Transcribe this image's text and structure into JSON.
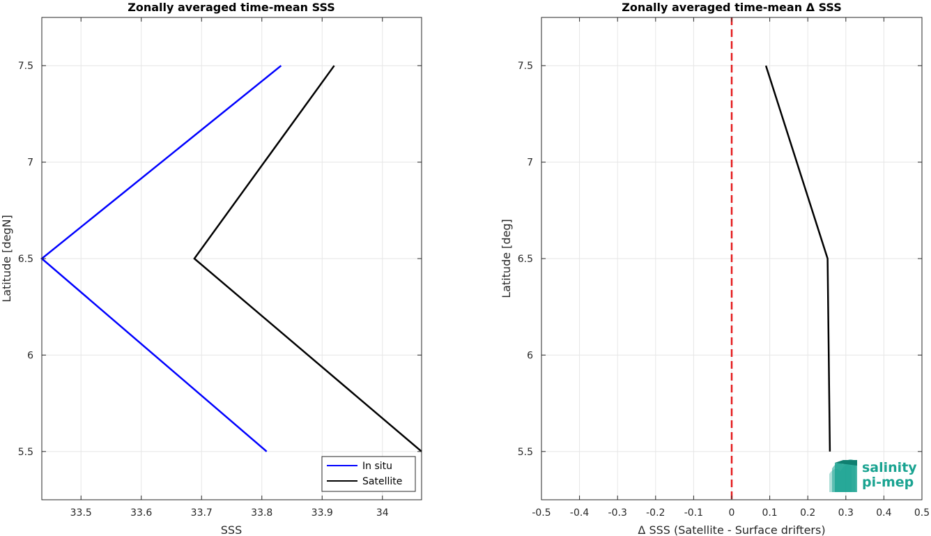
{
  "chart_data": [
    {
      "type": "line",
      "title": "Zonally averaged time-mean SSS",
      "xlabel": "SSS",
      "ylabel": "Latitude [degN]",
      "xlim": [
        33.435,
        34.065
      ],
      "ylim": [
        5.25,
        7.75
      ],
      "xticks": [
        33.5,
        33.6,
        33.7,
        33.8,
        33.9,
        34
      ],
      "xtick_labels": [
        "33.5",
        "33.6",
        "33.7",
        "33.8",
        "33.9",
        "34"
      ],
      "yticks": [
        5.5,
        6,
        6.5,
        7,
        7.5
      ],
      "ytick_labels": [
        "5.5",
        "6",
        "6.5",
        "7",
        "7.5"
      ],
      "grid": true,
      "legend_position": "bottom-right",
      "series": [
        {
          "name": "In situ",
          "color": "#0000ff",
          "points": [
            [
              33.808,
              5.5
            ],
            [
              33.435,
              6.5
            ],
            [
              33.832,
              7.5
            ]
          ]
        },
        {
          "name": "Satellite",
          "color": "#000000",
          "points": [
            [
              34.065,
              5.5
            ],
            [
              33.688,
              6.5
            ],
            [
              33.92,
              7.5
            ]
          ]
        }
      ]
    },
    {
      "type": "line",
      "title": "Zonally averaged time-mean Δ SSS",
      "xlabel": "Δ SSS (Satellite - Surface drifters)",
      "ylabel": "Latitude [deg]",
      "xlim": [
        -0.5,
        0.5
      ],
      "ylim": [
        5.25,
        7.75
      ],
      "xticks": [
        -0.5,
        -0.4,
        -0.3,
        -0.2,
        -0.1,
        0,
        0.1,
        0.2,
        0.3,
        0.4,
        0.5
      ],
      "xtick_labels": [
        "-0.5",
        "-0.4",
        "-0.3",
        "-0.2",
        "-0.1",
        "0",
        "0.1",
        "0.2",
        "0.3",
        "0.4",
        "0.5"
      ],
      "yticks": [
        5.5,
        6,
        6.5,
        7,
        7.5
      ],
      "ytick_labels": [
        "5.5",
        "6",
        "6.5",
        "7",
        "7.5"
      ],
      "grid": true,
      "reference_line": {
        "x": 0,
        "color": "#e41a1c",
        "style": "dashed"
      },
      "series": [
        {
          "color": "#000000",
          "points": [
            [
              0.258,
              5.5
            ],
            [
              0.252,
              6.5
            ],
            [
              0.09,
              7.5
            ]
          ]
        }
      ]
    }
  ],
  "logo": {
    "line1": "salinity",
    "line2": "pi-mep",
    "color": "#1aa391"
  }
}
